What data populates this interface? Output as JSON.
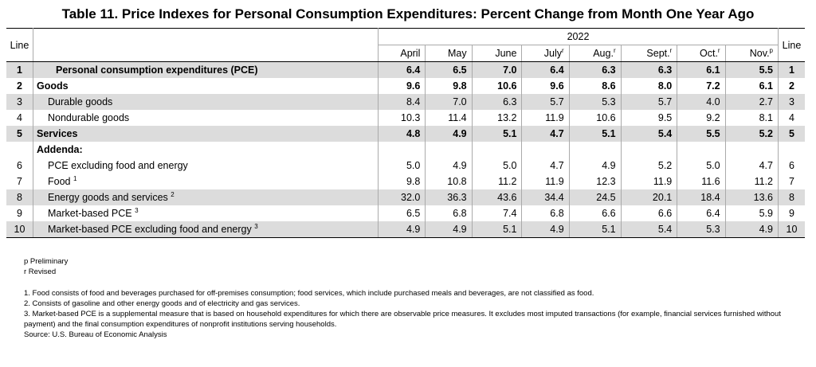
{
  "title": "Table 11. Price Indexes for Personal Consumption Expenditures: Percent Change from Month One Year Ago",
  "header": {
    "line_label": "Line",
    "year": "2022",
    "months": [
      {
        "label": "April",
        "sup": ""
      },
      {
        "label": "May",
        "sup": ""
      },
      {
        "label": "June",
        "sup": ""
      },
      {
        "label": "July",
        "sup": "r"
      },
      {
        "label": "Aug.",
        "sup": "r"
      },
      {
        "label": "Sept.",
        "sup": "r"
      },
      {
        "label": "Oct.",
        "sup": "r"
      },
      {
        "label": "Nov.",
        "sup": "p"
      }
    ]
  },
  "rows": [
    {
      "line": "1",
      "label": "Personal consumption expenditures (PCE)",
      "sup": "",
      "values": [
        "6.4",
        "6.5",
        "7.0",
        "6.4",
        "6.3",
        "6.3",
        "6.1",
        "5.5"
      ]
    },
    {
      "line": "2",
      "label": "Goods",
      "sup": "",
      "values": [
        "9.6",
        "9.8",
        "10.6",
        "9.6",
        "8.6",
        "8.0",
        "7.2",
        "6.1"
      ]
    },
    {
      "line": "3",
      "label": "Durable goods",
      "sup": "",
      "values": [
        "8.4",
        "7.0",
        "6.3",
        "5.7",
        "5.3",
        "5.7",
        "4.0",
        "2.7"
      ]
    },
    {
      "line": "4",
      "label": "Nondurable goods",
      "sup": "",
      "values": [
        "10.3",
        "11.4",
        "13.2",
        "11.9",
        "10.6",
        "9.5",
        "9.2",
        "8.1"
      ]
    },
    {
      "line": "5",
      "label": "Services",
      "sup": "",
      "values": [
        "4.8",
        "4.9",
        "5.1",
        "4.7",
        "5.1",
        "5.4",
        "5.5",
        "5.2"
      ]
    },
    {
      "line": "",
      "label": "Addenda:",
      "sup": "",
      "values": [
        "",
        "",
        "",
        "",
        "",
        "",
        "",
        ""
      ]
    },
    {
      "line": "6",
      "label": "PCE excluding food and energy",
      "sup": "",
      "values": [
        "5.0",
        "4.9",
        "5.0",
        "4.7",
        "4.9",
        "5.2",
        "5.0",
        "4.7"
      ]
    },
    {
      "line": "7",
      "label": "Food",
      "sup": "1",
      "values": [
        "9.8",
        "10.8",
        "11.2",
        "11.9",
        "12.3",
        "11.9",
        "11.6",
        "11.2"
      ]
    },
    {
      "line": "8",
      "label": "Energy goods and services",
      "sup": "2",
      "values": [
        "32.0",
        "36.3",
        "43.6",
        "34.4",
        "24.5",
        "20.1",
        "18.4",
        "13.6"
      ]
    },
    {
      "line": "9",
      "label": "Market-based PCE",
      "sup": "3",
      "values": [
        "6.5",
        "6.8",
        "7.4",
        "6.8",
        "6.6",
        "6.6",
        "6.4",
        "5.9"
      ]
    },
    {
      "line": "10",
      "label": "Market-based PCE excluding food and energy",
      "sup": "3",
      "values": [
        "4.9",
        "4.9",
        "5.1",
        "4.9",
        "5.1",
        "5.4",
        "5.3",
        "4.9"
      ]
    }
  ],
  "notes": {
    "preliminary": "p Preliminary",
    "revised": "r Revised",
    "footnote1": "1. Food consists of food and beverages purchased for off-premises consumption; food services, which include purchased meals and beverages, are not classified as food.",
    "footnote2": "2. Consists of gasoline and other energy goods and of electricity and gas services.",
    "footnote3a": "3. Market-based PCE is a supplemental measure that is based on household expenditures for which there are observable price measures. It excludes most imputed transactions (for example, financial services furnished without",
    "footnote3b": "payment) and the final consumption expenditures of nonprofit institutions serving households.",
    "source": "Source: U.S. Bureau of Economic Analysis"
  }
}
